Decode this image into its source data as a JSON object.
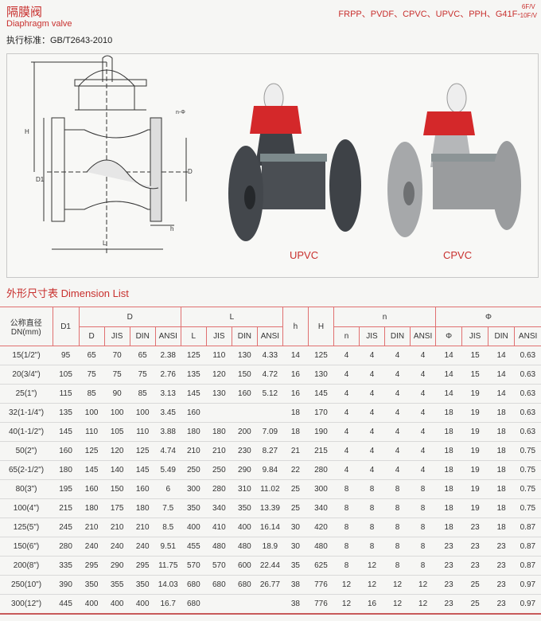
{
  "header": {
    "title_cn": "隔膜阀",
    "title_en": "Diaphragm valve",
    "standard": "执行标准：GB/T2643-2010",
    "materials": "FRPP、PVDF、CPVC、UPVC、PPH、G41F-",
    "pressure_top": "6F/V",
    "pressure_bottom": "10F/V"
  },
  "figure": {
    "drawing_labels": {
      "H": "H",
      "D1": "D1",
      "D": "D",
      "L": "L",
      "h": "h",
      "n_phi": "n-Φ"
    },
    "products": [
      {
        "label": "UPVC",
        "body_color": "#4a4e53"
      },
      {
        "label": "CPVC",
        "body_color": "#9a9c9e"
      }
    ],
    "handwheel_color": "#d4282a"
  },
  "section_title": "外形尺寸表 Dimension List",
  "table": {
    "group_headers": {
      "dn": "公称直径DN(mm)",
      "d1": "D1",
      "d": "D",
      "l": "L",
      "h": "h",
      "H": "H",
      "n": "n",
      "phi": "Φ"
    },
    "sub_headers": [
      "D",
      "JIS",
      "DIN",
      "ANSI",
      "L",
      "JIS",
      "DIN",
      "ANSI",
      "n",
      "JIS",
      "DIN",
      "ANSI",
      "Φ",
      "JIS",
      "DIN",
      "ANSI"
    ],
    "rows": [
      [
        "15(1/2\")",
        "95",
        "65",
        "70",
        "65",
        "2.38",
        "125",
        "110",
        "130",
        "4.33",
        "14",
        "125",
        "4",
        "4",
        "4",
        "4",
        "14",
        "15",
        "14",
        "0.63"
      ],
      [
        "20(3/4\")",
        "105",
        "75",
        "75",
        "75",
        "2.76",
        "135",
        "120",
        "150",
        "4.72",
        "16",
        "130",
        "4",
        "4",
        "4",
        "4",
        "14",
        "15",
        "14",
        "0.63"
      ],
      [
        "25(1\")",
        "115",
        "85",
        "90",
        "85",
        "3.13",
        "145",
        "130",
        "160",
        "5.12",
        "16",
        "145",
        "4",
        "4",
        "4",
        "4",
        "14",
        "19",
        "14",
        "0.63"
      ],
      [
        "32(1-1/4\")",
        "135",
        "100",
        "100",
        "100",
        "3.45",
        "160",
        "",
        "",
        "",
        "18",
        "170",
        "4",
        "4",
        "4",
        "4",
        "18",
        "19",
        "18",
        "0.63"
      ],
      [
        "40(1-1/2\")",
        "145",
        "110",
        "105",
        "110",
        "3.88",
        "180",
        "180",
        "200",
        "7.09",
        "18",
        "190",
        "4",
        "4",
        "4",
        "4",
        "18",
        "19",
        "18",
        "0.63"
      ],
      [
        "50(2\")",
        "160",
        "125",
        "120",
        "125",
        "4.74",
        "210",
        "210",
        "230",
        "8.27",
        "21",
        "215",
        "4",
        "4",
        "4",
        "4",
        "18",
        "19",
        "18",
        "0.75"
      ],
      [
        "65(2-1/2\")",
        "180",
        "145",
        "140",
        "145",
        "5.49",
        "250",
        "250",
        "290",
        "9.84",
        "22",
        "280",
        "4",
        "4",
        "4",
        "4",
        "18",
        "19",
        "18",
        "0.75"
      ],
      [
        "80(3\")",
        "195",
        "160",
        "150",
        "160",
        "6",
        "300",
        "280",
        "310",
        "11.02",
        "25",
        "300",
        "8",
        "8",
        "8",
        "8",
        "18",
        "19",
        "18",
        "0.75"
      ],
      [
        "100(4\")",
        "215",
        "180",
        "175",
        "180",
        "7.5",
        "350",
        "340",
        "350",
        "13.39",
        "25",
        "340",
        "8",
        "8",
        "8",
        "8",
        "18",
        "19",
        "18",
        "0.75"
      ],
      [
        "125(5\")",
        "245",
        "210",
        "210",
        "210",
        "8.5",
        "400",
        "410",
        "400",
        "16.14",
        "30",
        "420",
        "8",
        "8",
        "8",
        "8",
        "18",
        "23",
        "18",
        "0.87"
      ],
      [
        "150(6\")",
        "280",
        "240",
        "240",
        "240",
        "9.51",
        "455",
        "480",
        "480",
        "18.9",
        "30",
        "480",
        "8",
        "8",
        "8",
        "8",
        "23",
        "23",
        "23",
        "0.87"
      ],
      [
        "200(8\")",
        "335",
        "295",
        "290",
        "295",
        "11.75",
        "570",
        "570",
        "600",
        "22.44",
        "35",
        "625",
        "8",
        "12",
        "8",
        "8",
        "23",
        "23",
        "23",
        "0.87"
      ],
      [
        "250(10\")",
        "390",
        "350",
        "355",
        "350",
        "14.03",
        "680",
        "680",
        "680",
        "26.77",
        "38",
        "776",
        "12",
        "12",
        "12",
        "12",
        "23",
        "25",
        "23",
        "0.97"
      ],
      [
        "300(12\")",
        "445",
        "400",
        "400",
        "400",
        "16.7",
        "680",
        "",
        "",
        "",
        "38",
        "776",
        "12",
        "16",
        "12",
        "12",
        "23",
        "25",
        "23",
        "0.97"
      ]
    ]
  }
}
